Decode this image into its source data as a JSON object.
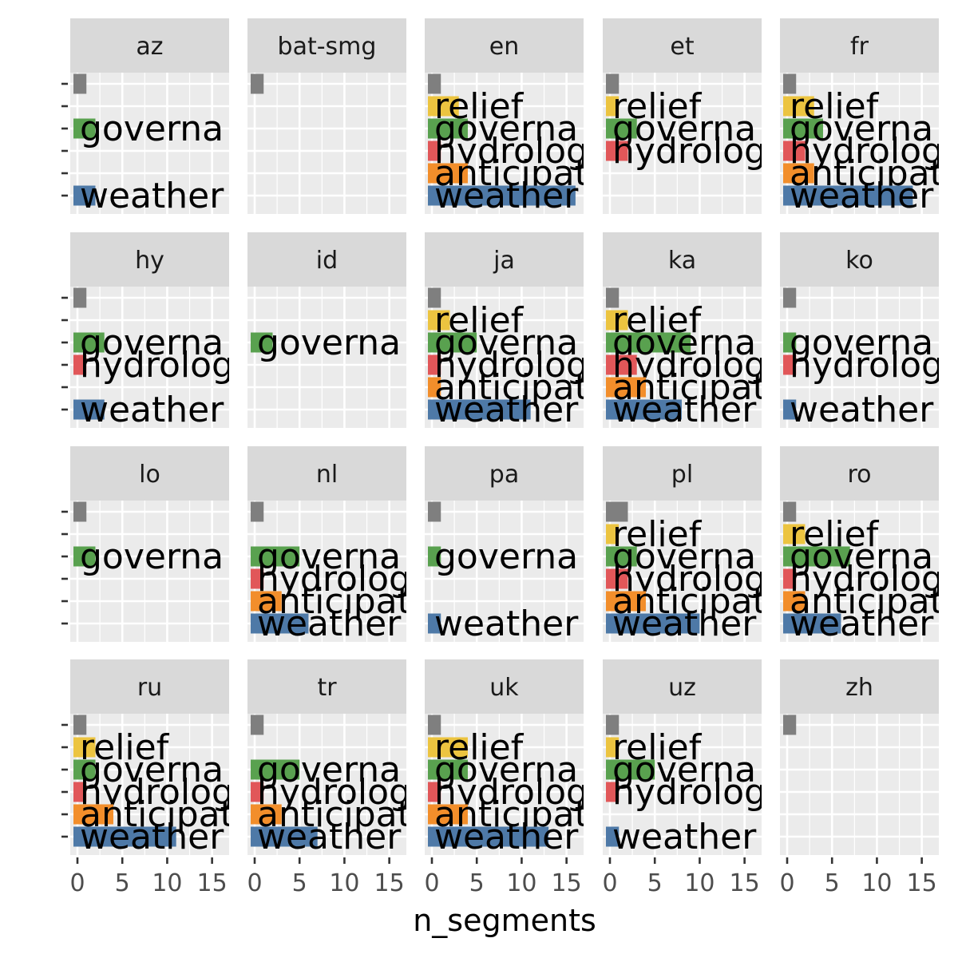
{
  "chart_data": {
    "type": "bar",
    "orientation": "horizontal",
    "facet": "language",
    "xlabel": "n_segments",
    "ylabel": "",
    "xlim": [
      0,
      16
    ],
    "x_ticks": [
      0,
      5,
      10,
      15
    ],
    "x_tick_labels": [
      "0",
      "5",
      "10",
      "15"
    ],
    "y_axis_ticks_shown": "first column of facets only, without labels",
    "grid": true,
    "categories": [
      "",
      "relief",
      "governance",
      "hydrology",
      "anticipation",
      "weather"
    ],
    "category_colors": {
      "": "#7f7f7f",
      "relief": "#ecc440",
      "governance": "#59a14f",
      "hydrology": "#e15759",
      "anticipation": "#f28e2b",
      "weather": "#4e79a7"
    },
    "label_texts": {
      "relief": "relief",
      "governance": "governa",
      "hydrology": "hydrolog",
      "anticipation": "anticipat",
      "weather": "weather"
    },
    "panels": [
      {
        "lang": "az",
        "values": {
          "": 1,
          "governance": 2,
          "weather": 2
        }
      },
      {
        "lang": "bat-smg",
        "values": {
          "": 1
        }
      },
      {
        "lang": "en",
        "values": {
          "": 1,
          "relief": 3,
          "governance": 4,
          "hydrology": 1,
          "anticipation": 4,
          "weather": 16
        }
      },
      {
        "lang": "et",
        "values": {
          "": 1,
          "relief": 1,
          "governance": 3,
          "hydrology": 2
        }
      },
      {
        "lang": "fr",
        "values": {
          "": 1,
          "relief": 3,
          "governance": 4,
          "hydrology": 2,
          "anticipation": 3,
          "weather": 14
        }
      },
      {
        "lang": "hy",
        "values": {
          "": 1,
          "governance": 3,
          "hydrology": 1,
          "weather": 3
        }
      },
      {
        "lang": "id",
        "values": {
          "governance": 2
        }
      },
      {
        "lang": "ja",
        "values": {
          "": 1,
          "relief": 2,
          "governance": 5,
          "hydrology": 1,
          "anticipation": 1,
          "weather": 11
        }
      },
      {
        "lang": "ka",
        "values": {
          "": 1,
          "relief": 2,
          "governance": 9,
          "hydrology": 3,
          "anticipation": 4,
          "weather": 8
        }
      },
      {
        "lang": "ko",
        "values": {
          "": 1,
          "governance": 1,
          "hydrology": 1,
          "weather": 1
        }
      },
      {
        "lang": "lo",
        "values": {
          "": 1,
          "governance": 2
        }
      },
      {
        "lang": "nl",
        "values": {
          "": 1,
          "governance": 5,
          "hydrology": 1,
          "anticipation": 3,
          "weather": 6
        }
      },
      {
        "lang": "pa",
        "values": {
          "": 1,
          "governance": 1,
          "weather": 1
        }
      },
      {
        "lang": "pl",
        "values": {
          "": 2,
          "relief": 1,
          "governance": 3,
          "hydrology": 2,
          "anticipation": 4,
          "weather": 10
        }
      },
      {
        "lang": "ro",
        "values": {
          "": 1,
          "relief": 2,
          "governance": 7,
          "hydrology": 1,
          "anticipation": 2,
          "weather": 6
        }
      },
      {
        "lang": "ru",
        "values": {
          "": 1,
          "relief": 2,
          "governance": 2,
          "hydrology": 1,
          "anticipation": 4,
          "weather": 11
        }
      },
      {
        "lang": "tr",
        "values": {
          "": 1,
          "governance": 5,
          "hydrology": 1,
          "anticipation": 3,
          "weather": 7
        }
      },
      {
        "lang": "uk",
        "values": {
          "": 1,
          "relief": 4,
          "governance": 4,
          "hydrology": 1,
          "anticipation": 4,
          "weather": 13
        }
      },
      {
        "lang": "uz",
        "values": {
          "": 1,
          "relief": 1,
          "governance": 5,
          "hydrology": 1,
          "weather": 1
        }
      },
      {
        "lang": "zh",
        "values": {
          "": 1
        }
      }
    ]
  }
}
